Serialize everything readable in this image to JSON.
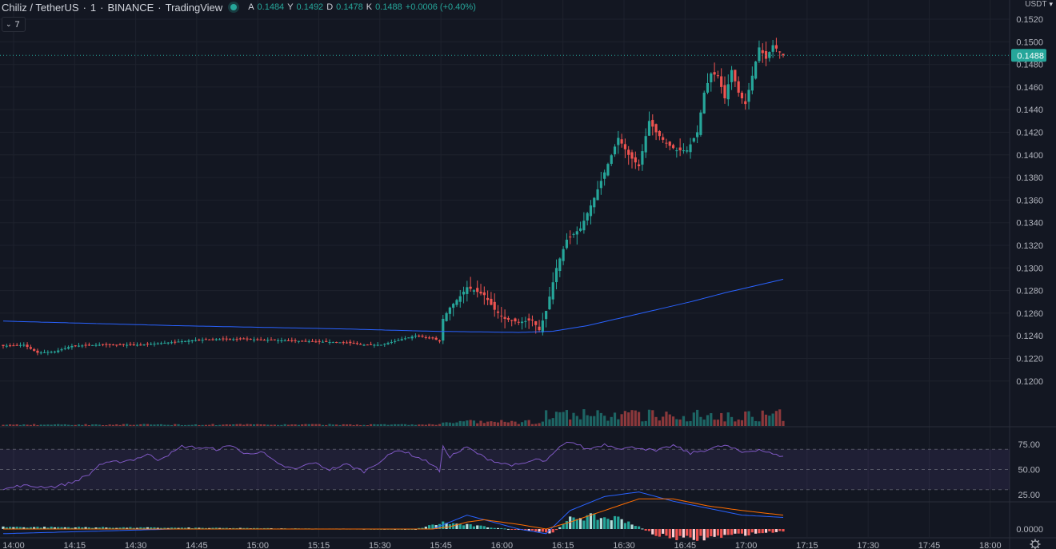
{
  "header": {
    "symbol": "Chiliz / TetherUS",
    "interval": "1",
    "exchange": "BINANCE",
    "source": "TradingView",
    "ohlc": [
      {
        "label": "A",
        "value": "0.1484"
      },
      {
        "label": "Y",
        "value": "0.1492"
      },
      {
        "label": "D",
        "value": "0.1478"
      },
      {
        "label": "K",
        "value": "0.1488"
      }
    ],
    "change": "+0.0006 (+0.40%)",
    "indicator_count": "7"
  },
  "currency": "USDT",
  "colors": {
    "up": "#26a69a",
    "down": "#ef5350",
    "ma": "#2962ff",
    "rsi": "#7e57c2",
    "macd": "#2962ff",
    "signal": "#ff6d00",
    "background": "#131722",
    "grid": "#1e222d",
    "text": "#b2b5be"
  },
  "last_price": "0.1488",
  "chart_data": [
    {
      "type": "candlestick",
      "pane": "price",
      "time_labels": [
        "14:00",
        "14:15",
        "14:30",
        "14:45",
        "15:00",
        "15:15",
        "15:30",
        "15:45",
        "16:00",
        "16:15",
        "16:30",
        "16:45",
        "17:00",
        "17:15",
        "17:30",
        "17:45",
        "18:00"
      ],
      "y_ticks": [
        "0.1520",
        "0.1500",
        "0.1480",
        "0.1460",
        "0.1440",
        "0.1420",
        "0.1400",
        "0.1380",
        "0.1360",
        "0.1340",
        "0.1320",
        "0.1300",
        "0.1280",
        "0.1260",
        "0.1240",
        "0.1220",
        "0.1200"
      ],
      "ylim": [
        0.1198,
        0.1523
      ],
      "anchors": [
        [
          0,
          0.1231
        ],
        [
          6,
          0.1232
        ],
        [
          10,
          0.1225
        ],
        [
          15,
          0.1226
        ],
        [
          20,
          0.1231
        ],
        [
          28,
          0.1232
        ],
        [
          40,
          0.1232
        ],
        [
          48,
          0.1234
        ],
        [
          55,
          0.1236
        ],
        [
          62,
          0.1237
        ],
        [
          70,
          0.1237
        ],
        [
          80,
          0.1236
        ],
        [
          90,
          0.1235
        ],
        [
          100,
          0.1234
        ],
        [
          105,
          0.1232
        ],
        [
          110,
          0.1232
        ],
        [
          116,
          0.1237
        ],
        [
          120,
          0.124
        ],
        [
          125,
          0.1238
        ],
        [
          127,
          0.1235
        ],
        [
          128,
          0.1255
        ],
        [
          130,
          0.1265
        ],
        [
          133,
          0.1275
        ],
        [
          135,
          0.1283
        ],
        [
          140,
          0.1276
        ],
        [
          143,
          0.1263
        ],
        [
          146,
          0.1255
        ],
        [
          150,
          0.1252
        ],
        [
          154,
          0.1254
        ],
        [
          156,
          0.1245
        ],
        [
          158,
          0.1262
        ],
        [
          161,
          0.13
        ],
        [
          164,
          0.1325
        ],
        [
          168,
          0.1335
        ],
        [
          172,
          0.1362
        ],
        [
          176,
          0.1392
        ],
        [
          179,
          0.1415
        ],
        [
          182,
          0.14
        ],
        [
          185,
          0.139
        ],
        [
          188,
          0.143
        ],
        [
          190,
          0.142
        ],
        [
          193,
          0.141
        ],
        [
          196,
          0.1404
        ],
        [
          199,
          0.1404
        ],
        [
          202,
          0.142
        ],
        [
          204,
          0.1455
        ],
        [
          206,
          0.1472
        ],
        [
          208,
          0.147
        ],
        [
          210,
          0.145
        ],
        [
          212,
          0.1475
        ],
        [
          214,
          0.1455
        ],
        [
          216,
          0.1445
        ],
        [
          218,
          0.147
        ],
        [
          220,
          0.1495
        ],
        [
          222,
          0.1485
        ],
        [
          224,
          0.1497
        ],
        [
          227,
          0.1488
        ]
      ],
      "candle_count": 228,
      "last_close": 0.1488
    },
    {
      "type": "line",
      "pane": "price",
      "name": "",
      "points": [
        [
          0,
          0.1253
        ],
        [
          50,
          0.1249
        ],
        [
          100,
          0.1246
        ],
        [
          125,
          0.1244
        ],
        [
          150,
          0.1243
        ],
        [
          160,
          0.1244
        ],
        [
          170,
          0.1249
        ],
        [
          180,
          0.1256
        ],
        [
          190,
          0.1263
        ],
        [
          200,
          0.127
        ],
        [
          210,
          0.1278
        ],
        [
          220,
          0.1285
        ],
        [
          227,
          0.129
        ]
      ]
    },
    {
      "type": "bar",
      "pane": "volume",
      "name": "",
      "description_free": true,
      "ranges": [
        [
          0,
          127,
          1
        ],
        [
          128,
          157,
          5
        ],
        [
          158,
          227,
          14
        ]
      ]
    },
    {
      "type": "line",
      "pane": "rsi",
      "y_ticks": [
        "75.00",
        "50.00",
        "25.00"
      ],
      "ylim": [
        14,
        82
      ],
      "band": [
        30,
        70
      ],
      "mid": 50,
      "points": [
        [
          0,
          30
        ],
        [
          5,
          34
        ],
        [
          10,
          33
        ],
        [
          15,
          33
        ],
        [
          20,
          37
        ],
        [
          25,
          45
        ],
        [
          28,
          55
        ],
        [
          32,
          57
        ],
        [
          38,
          60
        ],
        [
          42,
          65
        ],
        [
          45,
          60
        ],
        [
          50,
          68
        ],
        [
          52,
          73
        ],
        [
          56,
          72
        ],
        [
          62,
          70
        ],
        [
          67,
          74
        ],
        [
          70,
          65
        ],
        [
          75,
          68
        ],
        [
          80,
          55
        ],
        [
          85,
          50
        ],
        [
          90,
          57
        ],
        [
          95,
          50
        ],
        [
          100,
          55
        ],
        [
          105,
          48
        ],
        [
          110,
          59
        ],
        [
          115,
          70
        ],
        [
          120,
          63
        ],
        [
          125,
          55
        ],
        [
          127,
          48
        ],
        [
          128,
          72
        ],
        [
          130,
          63
        ],
        [
          135,
          72
        ],
        [
          138,
          66
        ],
        [
          140,
          62
        ],
        [
          145,
          56
        ],
        [
          150,
          54
        ],
        [
          155,
          60
        ],
        [
          158,
          58
        ],
        [
          162,
          72
        ],
        [
          165,
          78
        ],
        [
          170,
          70
        ],
        [
          175,
          75
        ],
        [
          180,
          71
        ],
        [
          185,
          72
        ],
        [
          190,
          68
        ],
        [
          195,
          74
        ],
        [
          200,
          66
        ],
        [
          205,
          70
        ],
        [
          210,
          74
        ],
        [
          215,
          67
        ],
        [
          220,
          70
        ],
        [
          225,
          64
        ],
        [
          227,
          64
        ]
      ]
    },
    {
      "type": "line",
      "pane": "macd",
      "y_ticks": [
        "0.0000"
      ],
      "ylim": [
        -0.0009,
        0.0021
      ],
      "macd": [
        [
          0,
          -0.0002
        ],
        [
          50,
          0.0
        ],
        [
          100,
          0.0
        ],
        [
          125,
          0.0
        ],
        [
          130,
          0.0003
        ],
        [
          135,
          0.0006
        ],
        [
          140,
          0.0004
        ],
        [
          150,
          0.0
        ],
        [
          158,
          -0.0002
        ],
        [
          165,
          0.0008
        ],
        [
          175,
          0.0014
        ],
        [
          185,
          0.0016
        ],
        [
          195,
          0.0012
        ],
        [
          205,
          0.0009
        ],
        [
          215,
          0.0006
        ],
        [
          227,
          0.0005
        ]
      ],
      "signal": [
        [
          0,
          0.0
        ],
        [
          50,
          0.0
        ],
        [
          100,
          0.0
        ],
        [
          125,
          0.0
        ],
        [
          130,
          0.0001
        ],
        [
          135,
          0.0003
        ],
        [
          140,
          0.0004
        ],
        [
          150,
          0.0002
        ],
        [
          158,
          0.0
        ],
        [
          165,
          0.0003
        ],
        [
          175,
          0.0008
        ],
        [
          185,
          0.0013
        ],
        [
          195,
          0.0013
        ],
        [
          205,
          0.001
        ],
        [
          215,
          0.0008
        ],
        [
          227,
          0.0006
        ]
      ],
      "hist_scale": [
        [
          0,
          0.0001
        ],
        [
          120,
          0.0
        ],
        [
          128,
          0.0003
        ],
        [
          160,
          -0.0002
        ],
        [
          166,
          0.0006
        ],
        [
          180,
          0.0005
        ],
        [
          190,
          -0.0003
        ],
        [
          200,
          -0.0005
        ],
        [
          212,
          -0.0003
        ],
        [
          227,
          -0.0001
        ]
      ]
    }
  ]
}
